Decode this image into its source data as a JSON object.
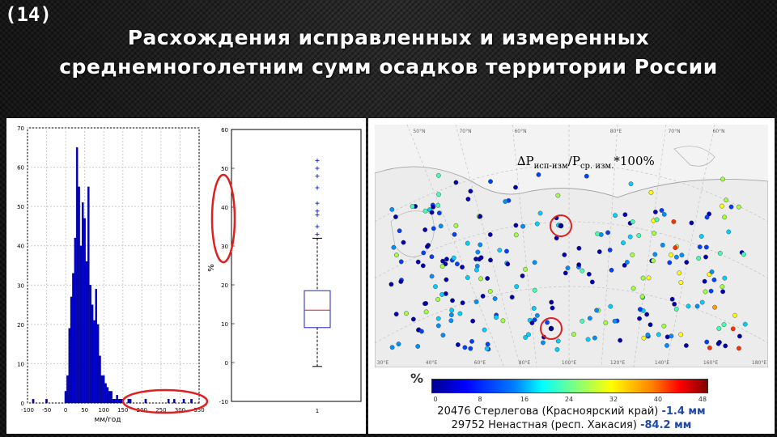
{
  "slide": {
    "number": "(14)"
  },
  "title": {
    "line1": "Расхождения исправленных и измеренных",
    "line2": "среднемноголетним сумм осадков территории России"
  },
  "histogram": {
    "xlabel": "мм/год",
    "y_ticks": [
      "70",
      "60",
      "50",
      "40",
      "30",
      "20",
      "10",
      "0"
    ],
    "x_ticks": [
      "-100",
      "-50",
      "0",
      "50",
      "100",
      "150",
      "200",
      "250",
      "300",
      "350"
    ]
  },
  "boxplot": {
    "ylabel": "%",
    "y_ticks": [
      "60",
      "50",
      "40",
      "30",
      "20",
      "10",
      "0",
      "-10"
    ],
    "x_tick": "1"
  },
  "map": {
    "formula": {
      "prefix": "∆P",
      "sub1": "исп-изм",
      "slash": "/P",
      "sub2": "ср. изм.",
      "suffix": "*100%"
    },
    "colorbar_label": "%",
    "colorbar_ticks": [
      "0",
      "8",
      "16",
      "24",
      "32",
      "40",
      "48"
    ],
    "stations": [
      {
        "prefix": "20476 Стерлегова (Красноярский край) ",
        "value": "-1.4 мм"
      },
      {
        "prefix": "29752 Ненастная (респ. Хакасия) ",
        "value": "-84.2 мм"
      }
    ],
    "lat_labels": [
      "50°N",
      "70°N",
      "60°N",
      "80°E",
      "70°N",
      "60°N"
    ],
    "lon_labels": [
      "30°E",
      "40°E",
      "60°E",
      "80°E",
      "100°E",
      "120°E",
      "140°E",
      "160°E",
      "180°E"
    ]
  },
  "chart_data": [
    {
      "type": "bar",
      "xlabel": "мм/год",
      "ylabel": "",
      "xlim": [
        -100,
        350
      ],
      "ylim": [
        0,
        70
      ],
      "x": [
        -95,
        -90,
        -85,
        -80,
        -75,
        -70,
        -65,
        -60,
        -55,
        -50,
        -45,
        -40,
        -35,
        -30,
        -25,
        -20,
        -15,
        -10,
        -5,
        0,
        5,
        10,
        15,
        20,
        25,
        30,
        35,
        40,
        45,
        50,
        55,
        60,
        65,
        70,
        75,
        80,
        85,
        90,
        95,
        100,
        105,
        110,
        115,
        120,
        125,
        130,
        135,
        140,
        145,
        150,
        155,
        160,
        165,
        170,
        175,
        180,
        185,
        190,
        195,
        200,
        205,
        210,
        215,
        220,
        225,
        230,
        235,
        240,
        245,
        250,
        255,
        260,
        265,
        270,
        275,
        280,
        285,
        290,
        295,
        300,
        305,
        310,
        315,
        320,
        325,
        330,
        335,
        340,
        345
      ],
      "values": [
        0,
        0,
        1,
        0,
        0,
        0,
        0,
        0,
        0,
        1,
        0,
        0,
        0,
        0,
        0,
        0,
        0,
        0,
        0,
        3,
        7,
        19,
        27,
        33,
        42,
        65,
        55,
        40,
        51,
        47,
        36,
        55,
        30,
        25,
        21,
        29,
        20,
        12,
        7,
        7,
        5,
        4,
        3,
        3,
        1,
        1,
        2,
        1,
        1,
        1,
        0,
        0,
        1,
        1,
        0,
        0,
        0,
        0,
        0,
        0,
        0,
        1,
        0,
        0,
        0,
        0,
        0,
        0,
        0,
        0,
        0,
        0,
        0,
        1,
        0,
        0,
        1,
        0,
        0,
        0,
        0,
        1,
        0,
        0,
        0,
        1,
        0,
        0,
        0
      ]
    },
    {
      "type": "box",
      "ylabel": "%",
      "ylim": [
        -10,
        60
      ],
      "whisker_low": -1,
      "q1": 9,
      "median": 13.5,
      "q3": 18.5,
      "whisker_high": 32,
      "outliers": [
        33,
        35,
        38,
        39,
        41,
        45,
        48,
        50,
        52
      ]
    }
  ]
}
